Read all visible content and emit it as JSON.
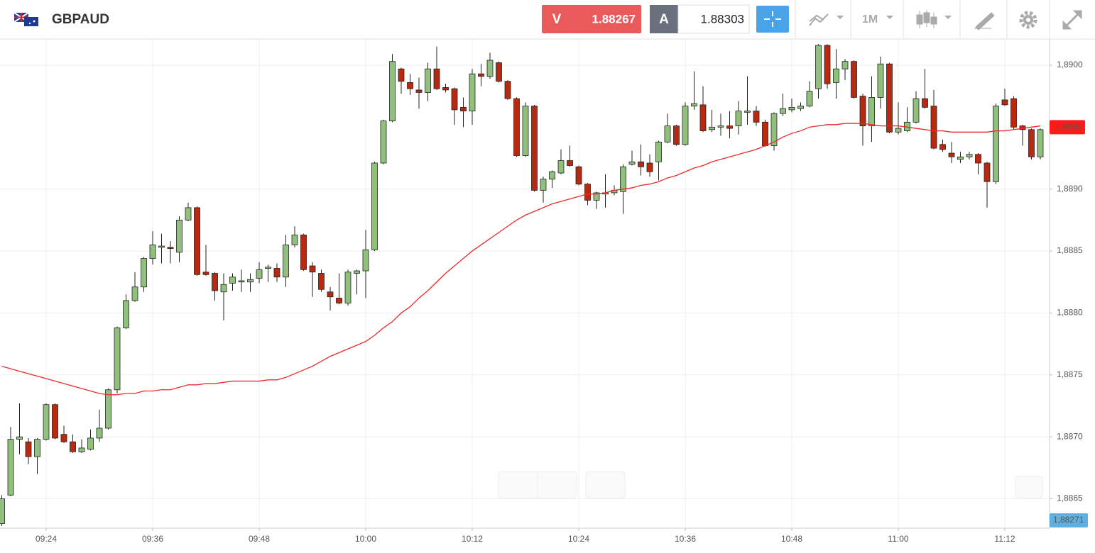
{
  "header": {
    "symbol": "GBPAUD",
    "sell_label": "V",
    "sell_price": 1.88267,
    "buy_label": "A",
    "buy_price": 1.88303,
    "timeframe": "1M"
  },
  "chart_data": {
    "type": "candlestick",
    "categories": [
      null,
      null,
      null,
      null,
      null,
      "09:24",
      null,
      null,
      null,
      null,
      null,
      null,
      null,
      null,
      null,
      null,
      null,
      "09:36",
      null,
      null,
      null,
      null,
      null,
      null,
      null,
      null,
      null,
      null,
      null,
      "09:48",
      null,
      null,
      null,
      null,
      null,
      null,
      null,
      null,
      null,
      null,
      null,
      "10:00",
      null,
      null,
      null,
      null,
      null,
      null,
      null,
      null,
      null,
      null,
      null,
      "10:12",
      null,
      null,
      null,
      null,
      null,
      null,
      null,
      null,
      null,
      null,
      null,
      "10:24",
      null,
      null,
      null,
      null,
      null,
      null,
      null,
      null,
      null,
      null,
      null,
      "10:36",
      null,
      null,
      null,
      null,
      null,
      null,
      null,
      null,
      null,
      null,
      null,
      "10:48",
      null,
      null,
      null,
      null,
      null,
      null,
      null,
      null,
      null,
      null,
      null,
      "11:00",
      null,
      null,
      null,
      null,
      null,
      null,
      null,
      null,
      null,
      null,
      null,
      "11:12",
      null,
      null,
      null,
      null
    ],
    "open": [
      1.8863,
      1.88653,
      1.88698,
      1.88696,
      1.88684,
      1.88698,
      1.88726,
      1.88702,
      1.88696,
      1.88688,
      1.8869,
      1.88699,
      1.88707,
      1.88738,
      1.88788,
      1.8881,
      1.88821,
      1.88844,
      1.88853,
      1.88853,
      1.88849,
      1.88875,
      1.88885,
      1.88833,
      1.88832,
      1.88817,
      1.88824,
      1.88825,
      1.88825,
      1.88828,
      1.88836,
      1.88836,
      1.88829,
      1.88855,
      1.88863,
      1.88838,
      1.88832,
      1.88817,
      1.88812,
      1.88808,
      1.88832,
      1.88834,
      1.88851,
      1.88921,
      1.88955,
      1.88997,
      1.88986,
      1.8898,
      1.88978,
      1.88997,
      1.88982,
      1.88981,
      1.88966,
      1.88963,
      1.88993,
      1.88991,
      1.89002,
      1.88987,
      1.88973,
      1.88927,
      1.88967,
      1.88899,
      1.88908,
      1.88913,
      1.88923,
      1.88918,
      1.88904,
      1.88891,
      1.88896,
      1.88897,
      1.88898,
      1.8892,
      1.88922,
      1.88921,
      1.88922,
      1.88938,
      1.88951,
      1.88936,
      1.88967,
      1.88968,
      1.88948,
      1.8895,
      1.88951,
      1.88951,
      1.88962,
      1.88963,
      1.88954,
      1.88935,
      1.88961,
      1.88964,
      1.88965,
      1.88967,
      1.88981,
      1.89016,
      1.88986,
      1.88997,
      1.89003,
      1.88975,
      1.88951,
      1.88974,
      1.89001,
      1.88946,
      1.88947,
      1.88954,
      1.88973,
      1.88967,
      1.88936,
      1.88929,
      1.88924,
      1.88926,
      1.88928,
      1.88921,
      1.88906,
      1.88972,
      1.88973,
      1.88951,
      1.88948,
      1.88926
    ],
    "high": [
      1.88653,
      1.88708,
      1.88727,
      1.88699,
      1.88699,
      1.88727,
      1.88727,
      1.88709,
      1.88702,
      1.88698,
      1.88706,
      1.88722,
      1.88739,
      1.88789,
      1.88815,
      1.88833,
      1.88845,
      1.88866,
      1.88864,
      1.88858,
      1.88878,
      1.88889,
      1.88886,
      1.88855,
      1.88833,
      1.88832,
      1.88832,
      1.88835,
      1.88832,
      1.88841,
      1.88839,
      1.8884,
      1.88863,
      1.8887,
      1.88864,
      1.88841,
      1.88835,
      1.88821,
      1.88832,
      1.88835,
      1.88835,
      1.88867,
      1.88922,
      1.88956,
      1.89009,
      1.88998,
      1.88993,
      1.8899,
      1.89002,
      1.89015,
      1.88985,
      1.88982,
      1.88974,
      1.88997,
      1.89001,
      1.8901,
      1.89003,
      1.88988,
      1.88974,
      1.8897,
      1.88968,
      1.8891,
      1.88915,
      1.88932,
      1.88935,
      1.88919,
      1.88905,
      1.88898,
      1.88912,
      1.88903,
      1.8892,
      1.88931,
      1.88936,
      1.88928,
      1.88939,
      1.88961,
      1.88952,
      1.8897,
      1.88995,
      1.88983,
      1.88964,
      1.88961,
      1.88963,
      1.88971,
      1.88991,
      1.88967,
      1.88956,
      1.88962,
      1.88977,
      1.88973,
      1.8897,
      1.88987,
      1.89017,
      1.89017,
      1.89013,
      1.89005,
      1.89004,
      1.88977,
      1.88991,
      1.89007,
      1.89002,
      1.8897,
      1.88966,
      1.88979,
      1.88997,
      1.8898,
      1.8894,
      1.88938,
      1.8893,
      1.8893,
      1.88929,
      1.88922,
      1.88969,
      1.88981,
      1.88975,
      1.88952,
      1.88949,
      1.88949
    ],
    "low": [
      1.88628,
      1.88652,
      1.88686,
      1.88678,
      1.8867,
      1.88697,
      1.88698,
      1.88695,
      1.88687,
      1.88687,
      1.88689,
      1.88696,
      1.88706,
      1.88735,
      1.88787,
      1.88809,
      1.88817,
      1.88839,
      1.8884,
      1.8884,
      1.88841,
      1.88874,
      1.8883,
      1.8883,
      1.8881,
      1.88794,
      1.88818,
      1.88817,
      1.88817,
      1.88824,
      1.88825,
      1.88825,
      1.88821,
      1.88853,
      1.88834,
      1.88813,
      1.88817,
      1.88802,
      1.88807,
      1.88806,
      1.88815,
      1.88812,
      1.8885,
      1.8892,
      1.88954,
      1.88977,
      1.88976,
      1.88965,
      1.88971,
      1.8898,
      1.88978,
      1.88952,
      1.8895,
      1.88952,
      1.88983,
      1.88989,
      1.88986,
      1.88972,
      1.88926,
      1.88926,
      1.88898,
      1.88889,
      1.88901,
      1.88912,
      1.88918,
      1.88903,
      1.88887,
      1.88884,
      1.88885,
      1.88895,
      1.8888,
      1.88919,
      1.88911,
      1.8891,
      1.88907,
      1.88937,
      1.88935,
      1.88935,
      1.88964,
      1.88946,
      1.88946,
      1.88943,
      1.88941,
      1.88944,
      1.88952,
      1.88951,
      1.88934,
      1.88931,
      1.88959,
      1.88962,
      1.88963,
      1.88966,
      1.88973,
      1.88981,
      1.88973,
      1.88988,
      1.88973,
      1.88935,
      1.88938,
      1.88965,
      1.88945,
      1.88944,
      1.88946,
      1.88953,
      1.88965,
      1.88932,
      1.8893,
      1.88921,
      1.88921,
      1.88924,
      1.88912,
      1.88885,
      1.88904,
      1.88967,
      1.88948,
      1.88935,
      1.88924,
      1.88924
    ],
    "close": [
      1.8865,
      1.88698,
      1.887,
      1.88684,
      1.88698,
      1.88726,
      1.88699,
      1.88696,
      1.88688,
      1.88691,
      1.88699,
      1.88707,
      1.88738,
      1.88788,
      1.8881,
      1.88821,
      1.88844,
      1.88855,
      1.88854,
      1.88852,
      1.88875,
      1.88885,
      1.88831,
      1.88831,
      1.88818,
      1.88823,
      1.88829,
      1.88826,
      1.88827,
      1.88835,
      1.88837,
      1.88829,
      1.88855,
      1.88863,
      1.88835,
      1.88833,
      1.88819,
      1.88813,
      1.88808,
      1.88833,
      1.88834,
      1.88851,
      1.88921,
      1.88955,
      1.89003,
      1.88987,
      1.88981,
      1.88978,
      1.88997,
      1.88981,
      1.8898,
      1.88964,
      1.88963,
      1.88993,
      1.88991,
      1.89004,
      1.88987,
      1.88973,
      1.88927,
      1.88967,
      1.88899,
      1.88908,
      1.88914,
      1.88923,
      1.88919,
      1.88904,
      1.88891,
      1.88897,
      1.88897,
      1.88899,
      1.88918,
      1.88922,
      1.88918,
      1.88914,
      1.88938,
      1.88951,
      1.88936,
      1.88967,
      1.88969,
      1.88947,
      1.8895,
      1.88951,
      1.88949,
      1.88963,
      1.88963,
      1.88954,
      1.88935,
      1.88961,
      1.88965,
      1.88966,
      1.88967,
      1.88979,
      1.89016,
      1.88985,
      1.88997,
      1.89003,
      1.88974,
      1.88951,
      1.88974,
      1.89001,
      1.88946,
      1.88949,
      1.88954,
      1.88973,
      1.88966,
      1.88933,
      1.88932,
      1.88926,
      1.88926,
      1.88928,
      1.88921,
      1.88906,
      1.88967,
      1.88968,
      1.8895,
      1.88948,
      1.88926,
      1.88948
    ],
    "up_color": "#8fc07c",
    "down_color": "#b8290f",
    "series": [
      {
        "color": "#ec2a2a",
        "values": [
          1.88757,
          1.88755,
          1.88753,
          1.88751,
          1.88749,
          1.88747,
          1.88745,
          1.88743,
          1.88741,
          1.88739,
          1.88737,
          1.88735,
          1.88734,
          1.88734,
          1.88735,
          1.88735,
          1.88737,
          1.88737,
          1.88738,
          1.88738,
          1.8874,
          1.88742,
          1.88742,
          1.88743,
          1.88743,
          1.88744,
          1.88745,
          1.88745,
          1.88745,
          1.88745,
          1.88746,
          1.88746,
          1.88748,
          1.88751,
          1.88754,
          1.88757,
          1.88761,
          1.88765,
          1.88768,
          1.88771,
          1.88774,
          1.88777,
          1.88782,
          1.88788,
          1.88793,
          1.888,
          1.88805,
          1.88812,
          1.88818,
          1.88825,
          1.88832,
          1.88838,
          1.88844,
          1.8885,
          1.88855,
          1.8886,
          1.88865,
          1.8887,
          1.88875,
          1.88879,
          1.88882,
          1.88885,
          1.88888,
          1.8889,
          1.88892,
          1.88894,
          1.88896,
          1.88896,
          1.88897,
          1.88899,
          1.889,
          1.88901,
          1.88903,
          1.88904,
          1.88906,
          1.88909,
          1.88911,
          1.88914,
          1.88917,
          1.88919,
          1.88922,
          1.88924,
          1.88926,
          1.88928,
          1.8893,
          1.88932,
          1.88935,
          1.88938,
          1.88942,
          1.88945,
          1.88947,
          1.8895,
          1.88951,
          1.88952,
          1.88952,
          1.88953,
          1.88953,
          1.88953,
          1.88952,
          1.88951,
          1.88951,
          1.88951,
          1.8895,
          1.88949,
          1.88948,
          1.88947,
          1.88947,
          1.88946,
          1.88946,
          1.88946,
          1.88946,
          1.88946,
          1.88947,
          1.88947,
          1.88948,
          1.88949,
          1.8895,
          1.88951
        ]
      }
    ],
    "ylim": [
      1.88628,
      1.8902
    ],
    "yticks": [
      {
        "value": 1.8865,
        "label": "1,8865"
      },
      {
        "value": 1.887,
        "label": "1,8870"
      },
      {
        "value": 1.8875,
        "label": "1,8875"
      },
      {
        "value": 1.888,
        "label": "1,8880"
      },
      {
        "value": 1.8885,
        "label": "1,8885"
      },
      {
        "value": 1.889,
        "label": "1,8890"
      },
      {
        "value": 1.89,
        "label": "1,8900"
      }
    ],
    "grid": true,
    "price_tag": {
      "value": 1.8895,
      "label": "1,8895",
      "color": "#ff1a1a"
    },
    "last_price_label": "1,88271"
  }
}
